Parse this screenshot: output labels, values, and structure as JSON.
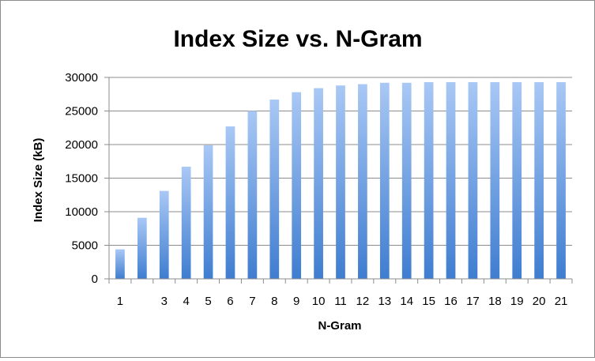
{
  "chart_data": {
    "type": "bar",
    "title": "Index Size vs. N-Gram",
    "xlabel": "N-Gram",
    "ylabel": "Index Size (kB)",
    "categories": [
      "1",
      "",
      "3",
      "4",
      "5",
      "6",
      "7",
      "8",
      "9",
      "10",
      "11",
      "12",
      "13",
      "14",
      "15",
      "16",
      "17",
      "18",
      "19",
      "20",
      "21"
    ],
    "values": [
      4400,
      9100,
      13100,
      16700,
      19900,
      22700,
      25000,
      26700,
      27800,
      28400,
      28800,
      29000,
      29200,
      29200,
      29300,
      29300,
      29300,
      29300,
      29300,
      29300,
      29300
    ],
    "ylim": [
      0,
      30000
    ],
    "yticks": [
      "0",
      "5000",
      "10000",
      "15000",
      "20000",
      "25000",
      "30000"
    ],
    "grid": true,
    "legend": "none",
    "colors": {
      "bar_top": "#a9c8f5",
      "bar_bottom": "#3f7dd0",
      "grid": "#8c8c8c",
      "axis": "#8c8c8c"
    }
  }
}
